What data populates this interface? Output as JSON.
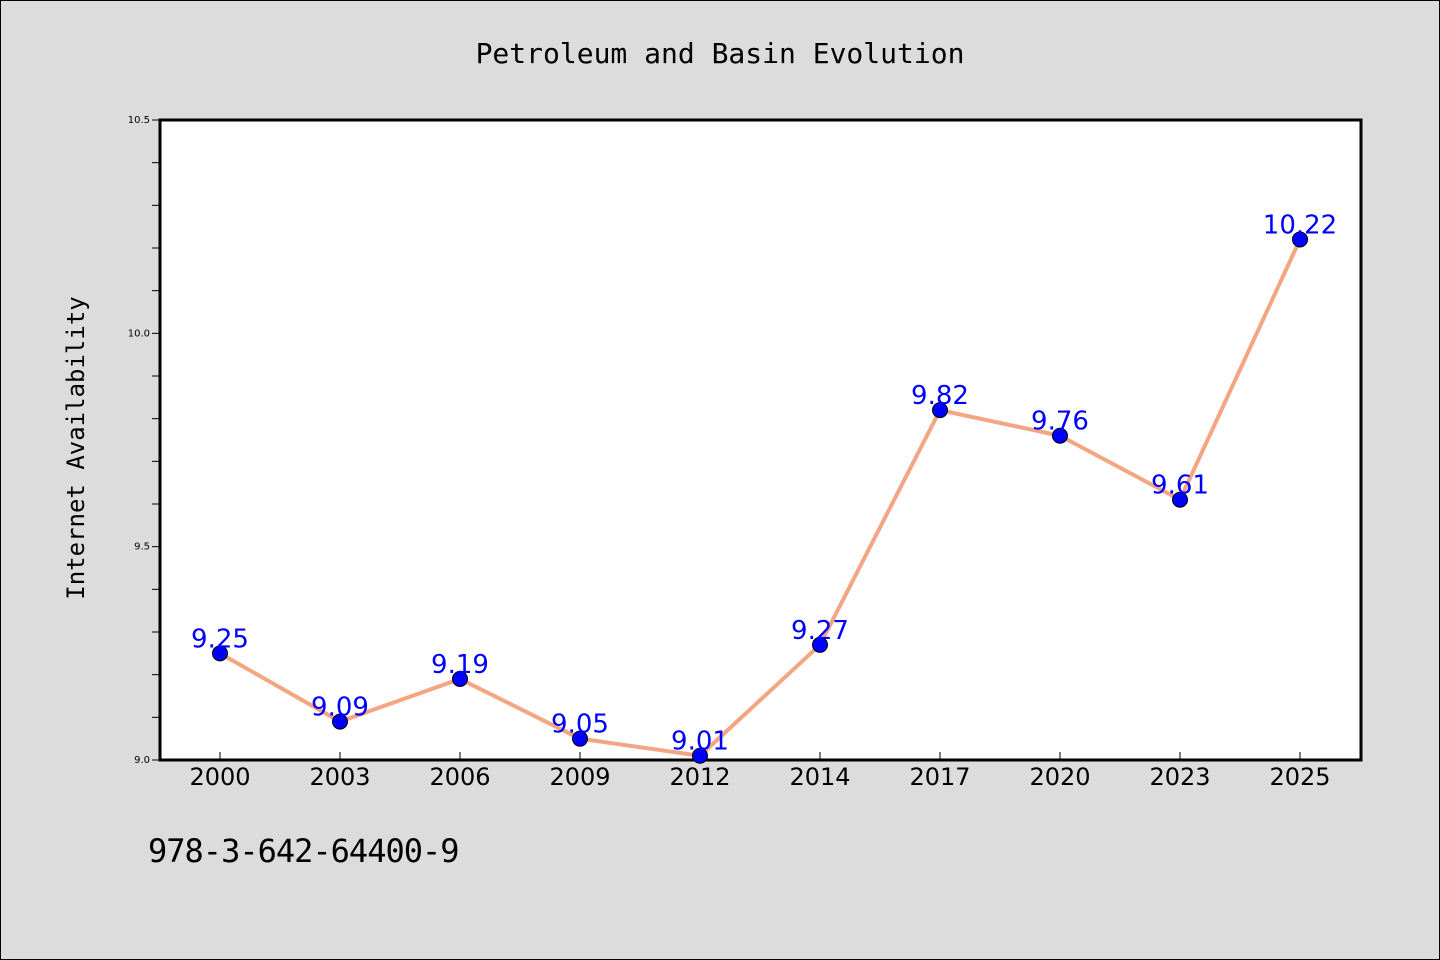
{
  "footer": {
    "isbn": "978-3-642-64400-9"
  },
  "colors": {
    "background": "#dcdcdc",
    "plot_background": "#ffffff",
    "line": "#f4a582",
    "marker": "#0000ff",
    "data_label": "#0000ff"
  },
  "chart_data": {
    "type": "line",
    "title": "Petroleum and Basin Evolution",
    "xlabel": "",
    "ylabel": "Internet Availability",
    "categories": [
      "2000",
      "2003",
      "2006",
      "2009",
      "2012",
      "2014",
      "2017",
      "2020",
      "2023",
      "2025"
    ],
    "series": [
      {
        "values": [
          9.25,
          9.09,
          9.19,
          9.05,
          9.01,
          9.27,
          9.82,
          9.76,
          9.61,
          10.22
        ]
      }
    ],
    "data_labels": [
      "9.25",
      "9.09",
      "9.19",
      "9.05",
      "9.01",
      "9.27",
      "9.82",
      "9.76",
      "9.61",
      "10.22"
    ],
    "ylim": [
      9.0,
      10.5
    ],
    "yticks": [
      "9.0",
      "9.5",
      "10.0",
      "10.5"
    ],
    "ytick_values": [
      9.0,
      9.5,
      10.0,
      10.5
    ],
    "minor_tick_step": 0.1,
    "grid": false,
    "legend": "none"
  }
}
